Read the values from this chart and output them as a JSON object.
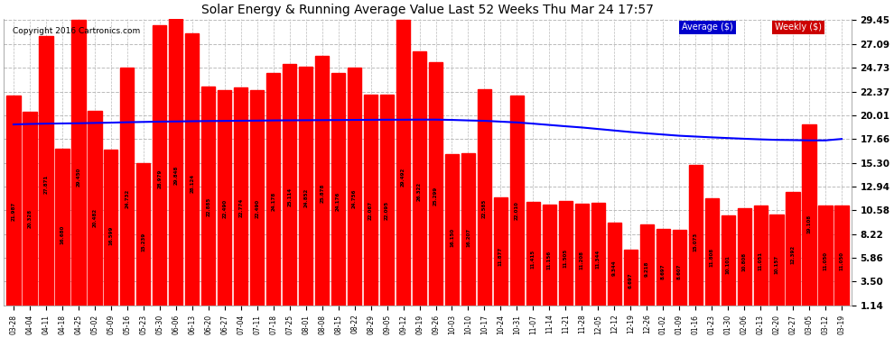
{
  "title": "Solar Energy & Running Average Value Last 52 Weeks Thu Mar 24 17:57",
  "copyright": "Copyright 2016 Cartronics.com",
  "bar_color": "#ff0000",
  "avg_line_color": "#0000ff",
  "background_color": "#ffffff",
  "plot_bg_color": "#ffffff",
  "grid_color": "#bbbbbb",
  "ylim": [
    1.14,
    29.45
  ],
  "yticks": [
    29.45,
    27.09,
    24.73,
    22.37,
    20.01,
    17.66,
    15.3,
    12.94,
    10.58,
    8.22,
    5.86,
    3.5,
    1.14
  ],
  "dates": [
    "03-28",
    "04-04",
    "04-11",
    "04-18",
    "04-25",
    "05-02",
    "05-09",
    "05-16",
    "05-23",
    "05-30",
    "06-06",
    "06-13",
    "06-20",
    "06-27",
    "07-04",
    "07-11",
    "07-18",
    "07-25",
    "08-01",
    "08-08",
    "08-15",
    "08-22",
    "08-29",
    "09-05",
    "09-12",
    "09-19",
    "09-26",
    "10-03",
    "10-10",
    "10-17",
    "10-24",
    "10-31",
    "11-07",
    "11-14",
    "11-21",
    "11-28",
    "12-05",
    "12-12",
    "12-19",
    "12-26",
    "01-02",
    "01-09",
    "01-16",
    "01-23",
    "01-30",
    "02-06",
    "02-13",
    "02-20",
    "02-27",
    "03-05",
    "03-12",
    "03-19"
  ],
  "weekly_values": [
    21.987,
    20.328,
    27.871,
    16.68,
    29.45,
    20.482,
    16.599,
    24.732,
    15.239,
    28.979,
    29.848,
    28.124,
    22.885,
    22.49,
    22.774,
    22.49,
    24.178,
    25.114,
    24.852,
    25.878,
    24.176,
    24.756,
    22.067,
    22.095,
    29.492,
    26.322,
    25.299,
    16.15,
    16.207,
    22.585,
    11.877,
    22.01,
    11.415,
    11.156,
    11.505,
    11.208,
    11.344,
    9.344,
    6.697,
    9.218,
    8.697,
    8.607,
    15.073,
    11.808,
    10.101,
    10.808,
    11.051,
    10.157,
    12.392,
    19.108,
    11.05,
    11.05
  ],
  "avg_values": [
    19.1,
    19.15,
    19.18,
    19.2,
    19.22,
    19.25,
    19.28,
    19.32,
    19.35,
    19.38,
    19.4,
    19.42,
    19.44,
    19.45,
    19.47,
    19.48,
    19.5,
    19.51,
    19.52,
    19.53,
    19.54,
    19.55,
    19.56,
    19.57,
    19.57,
    19.58,
    19.58,
    19.55,
    19.5,
    19.46,
    19.38,
    19.3,
    19.18,
    19.05,
    18.92,
    18.8,
    18.65,
    18.5,
    18.35,
    18.22,
    18.1,
    17.98,
    17.9,
    17.82,
    17.75,
    17.68,
    17.62,
    17.57,
    17.55,
    17.52,
    17.52,
    17.66
  ],
  "legend_avg_label": "Average ($)",
  "legend_weekly_label": "Weekly ($)",
  "legend_avg_bg": "#0000cc",
  "legend_weekly_bg": "#cc0000",
  "legend_text_color": "#ffffff"
}
